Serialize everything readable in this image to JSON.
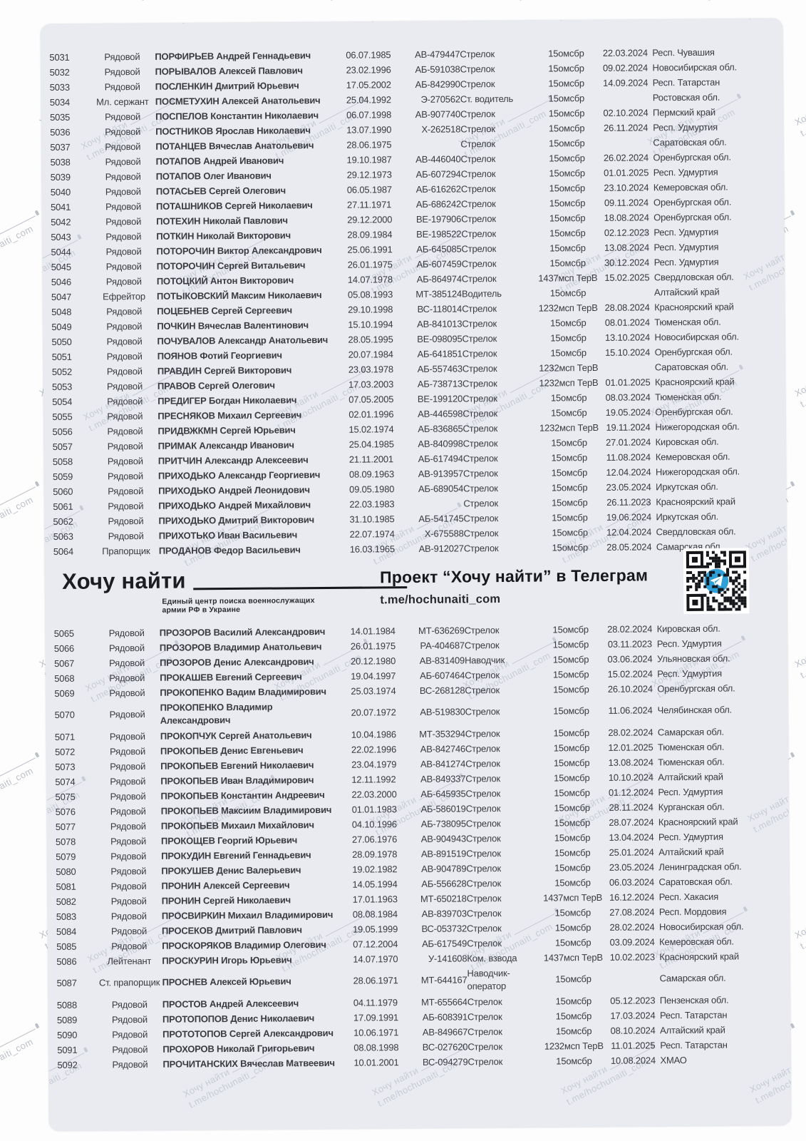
{
  "banner": {
    "logo_text": "Хочу найти",
    "logo_subtitle_line1": "Единый центр поиска военнослужащих",
    "logo_subtitle_line2": "армии РФ в Украине",
    "project_title": "Проект “Хочу найти” в Телеграм",
    "project_link": "t.me/hochunaiti_com",
    "qr_icon": "telegram-qr"
  },
  "watermark": {
    "line1": "Хочу найти",
    "line2": "t.me/hochunaiti_com"
  },
  "colors": {
    "page_bg": "#fdfdfd",
    "card_bg": "#e9ebf1",
    "text": "#3a3b40",
    "name_text": "#1f2024",
    "watermark": "#7a8294",
    "telegram_blue": "#2f9fd8",
    "qr_black": "#15161a"
  },
  "table": {
    "section1": [
      {
        "id": "5031",
        "rank": "Рядовой",
        "name": "ПОРФИРЬЕВ Андрей Геннадьевич",
        "dob": "06.07.1985",
        "doc": "АВ-479447",
        "position": "Стрелок",
        "unit": "15омсбр",
        "date": "22.03.2024",
        "region": "Респ. Чувашия"
      },
      {
        "id": "5032",
        "rank": "Рядовой",
        "name": "ПОРЫВАЛОВ Алексей Павлович",
        "dob": "23.02.1996",
        "doc": "АБ-591038",
        "position": "Стрелок",
        "unit": "15омсбр",
        "date": "09.02.2024",
        "region": "Новосибирская обл."
      },
      {
        "id": "5033",
        "rank": "Рядовой",
        "name": "ПОСЛЕНКИН Дмитрий Юрьевич",
        "dob": "17.05.2002",
        "doc": "АБ-842990",
        "position": "Стрелок",
        "unit": "15омсбр",
        "date": "14.09.2024",
        "region": "Респ. Татарстан"
      },
      {
        "id": "5034",
        "rank": "Мл. сержант",
        "name": "ПОСМЕТУХИН Алексей Анатольевич",
        "dob": "25.04.1992",
        "doc": "Э-270562",
        "position": "Ст. водитель",
        "unit": "15омсбр",
        "date": "",
        "region": "Ростовская обл."
      },
      {
        "id": "5035",
        "rank": "Рядовой",
        "name": "ПОСПЕЛОВ Константин Николаевич",
        "dob": "06.07.1998",
        "doc": "АВ-907740",
        "position": "Стрелок",
        "unit": "15омсбр",
        "date": "02.10.2024",
        "region": "Пермский край"
      },
      {
        "id": "5036",
        "rank": "Рядовой",
        "name": "ПОСТНИКОВ Ярослав Николаевич",
        "dob": "13.07.1990",
        "doc": "Х-262518",
        "position": "Стрелок",
        "unit": "15омсбр",
        "date": "26.11.2024",
        "region": "Респ. Удмуртия"
      },
      {
        "id": "5037",
        "rank": "Рядовой",
        "name": "ПОТАНЦЕВ Вячеслав Анатольевич",
        "dob": "28.06.1975",
        "doc": "",
        "position": "Стрелок",
        "unit": "15омсбр",
        "date": "",
        "region": "Саратовская обл."
      },
      {
        "id": "5038",
        "rank": "Рядовой",
        "name": "ПОТАПОВ Андрей Иванович",
        "dob": "19.10.1987",
        "doc": "АВ-446040",
        "position": "Стрелок",
        "unit": "15омсбр",
        "date": "26.02.2024",
        "region": "Оренбургская обл."
      },
      {
        "id": "5039",
        "rank": "Рядовой",
        "name": "ПОТАПОВ Олег Иванович",
        "dob": "29.12.1973",
        "doc": "АБ-607294",
        "position": "Стрелок",
        "unit": "15омсбр",
        "date": "01.01.2025",
        "region": "Респ. Удмуртия"
      },
      {
        "id": "5040",
        "rank": "Рядовой",
        "name": "ПОТАСЬЕВ Сергей Олегович",
        "dob": "06.05.1987",
        "doc": "АБ-616262",
        "position": "Стрелок",
        "unit": "15омсбр",
        "date": "23.10.2024",
        "region": "Кемеровская обл."
      },
      {
        "id": "5041",
        "rank": "Рядовой",
        "name": "ПОТАШНИКОВ Сергей Николаевич",
        "dob": "27.11.1971",
        "doc": "АБ-686242",
        "position": "Стрелок",
        "unit": "15омсбр",
        "date": "09.11.2024",
        "region": "Оренбургская обл."
      },
      {
        "id": "5042",
        "rank": "Рядовой",
        "name": "ПОТЕХИН Николай Павлович",
        "dob": "29.12.2000",
        "doc": "ВЕ-197906",
        "position": "Стрелок",
        "unit": "15омсбр",
        "date": "18.08.2024",
        "region": "Оренбургская обл."
      },
      {
        "id": "5043",
        "rank": "Рядовой",
        "name": "ПОТКИН Николай Викторович",
        "dob": "28.09.1984",
        "doc": "ВЕ-198522",
        "position": "Стрелок",
        "unit": "15омсбр",
        "date": "02.12.2023",
        "region": "Респ. Удмуртия"
      },
      {
        "id": "5044",
        "rank": "Рядовой",
        "name": "ПОТОРОЧИН Виктор Александрович",
        "dob": "25.06.1991",
        "doc": "АБ-645085",
        "position": "Стрелок",
        "unit": "15омсбр",
        "date": "13.08.2024",
        "region": "Респ. Удмуртия"
      },
      {
        "id": "5045",
        "rank": "Рядовой",
        "name": "ПОТОРОЧИН Сергей Витальевич",
        "dob": "26.01.1975",
        "doc": "АБ-607459",
        "position": "Стрелок",
        "unit": "15омсбр",
        "date": "30.12.2024",
        "region": "Респ. Удмуртия"
      },
      {
        "id": "5046",
        "rank": "Рядовой",
        "name": "ПОТОЦКИЙ Антон Викторович",
        "dob": "14.07.1978",
        "doc": "АБ-864974",
        "position": "Стрелок",
        "unit": "1437мсп ТерВ",
        "date": "15.02.2025",
        "region": "Свердловская обл."
      },
      {
        "id": "5047",
        "rank": "Ефрейтор",
        "name": "ПОТЫКОВСКИЙ Максим Николаевич",
        "dob": "05.08.1993",
        "doc": "МТ-385124",
        "position": "Водитель",
        "unit": "15омсбр",
        "date": "",
        "region": "Алтайский край"
      },
      {
        "id": "5048",
        "rank": "Рядовой",
        "name": "ПОЦЕБНЕВ Сергей Сергеевич",
        "dob": "29.10.1998",
        "doc": "ВС-118014",
        "position": "Стрелок",
        "unit": "1232мсп ТерВ",
        "date": "28.08.2024",
        "region": "Красноярский край"
      },
      {
        "id": "5049",
        "rank": "Рядовой",
        "name": "ПОЧКИН Вячеслав Валентинович",
        "dob": "15.10.1994",
        "doc": "АВ-841013",
        "position": "Стрелок",
        "unit": "15омсбр",
        "date": "08.01.2024",
        "region": "Тюменская обл."
      },
      {
        "id": "5050",
        "rank": "Рядовой",
        "name": "ПОЧУВАЛОВ Александр Анатольевич",
        "dob": "28.05.1995",
        "doc": "ВЕ-098095",
        "position": "Стрелок",
        "unit": "15омсбр",
        "date": "13.10.2024",
        "region": "Новосибирская обл."
      },
      {
        "id": "5051",
        "rank": "Рядовой",
        "name": "ПОЯНОВ Фотий Георгиевич",
        "dob": "20.07.1984",
        "doc": "АБ-641851",
        "position": "Стрелок",
        "unit": "15омсбр",
        "date": "15.10.2024",
        "region": "Оренбургская обл."
      },
      {
        "id": "5052",
        "rank": "Рядовой",
        "name": "ПРАВДИН Сергей Викторович",
        "dob": "23.03.1978",
        "doc": "АБ-557463",
        "position": "Стрелок",
        "unit": "1232мсп ТерВ",
        "date": "",
        "region": "Саратовская обл."
      },
      {
        "id": "5053",
        "rank": "Рядовой",
        "name": "ПРАВОВ Сергей Олегович",
        "dob": "17.03.2003",
        "doc": "АБ-738713",
        "position": "Стрелок",
        "unit": "1232мсп ТерВ",
        "date": "01.01.2025",
        "region": "Красноярский край"
      },
      {
        "id": "5054",
        "rank": "Рядовой",
        "name": "ПРЕДИГЕР Богдан Николаевич",
        "dob": "07.05.2005",
        "doc": "ВЕ-199120",
        "position": "Стрелок",
        "unit": "15омсбр",
        "date": "08.03.2024",
        "region": "Тюменская обл."
      },
      {
        "id": "5055",
        "rank": "Рядовой",
        "name": "ПРЕСНЯКОВ Михаил Сергеевич",
        "dob": "02.01.1996",
        "doc": "АВ-446598",
        "position": "Стрелок",
        "unit": "15омсбр",
        "date": "19.05.2024",
        "region": "Оренбургская обл."
      },
      {
        "id": "5056",
        "rank": "Рядовой",
        "name": "ПРИДВЖКМН Сергей Юрьевич",
        "dob": "15.02.1974",
        "doc": "АБ-836865",
        "position": "Стрелок",
        "unit": "1232мсп ТерВ",
        "date": "19.11.2024",
        "region": "Нижегородская обл."
      },
      {
        "id": "5057",
        "rank": "Рядовой",
        "name": "ПРИМАК Александр Иванович",
        "dob": "25.04.1985",
        "doc": "АВ-840998",
        "position": "Стрелок",
        "unit": "15омсбр",
        "date": "27.01.2024",
        "region": "Кировская обл."
      },
      {
        "id": "5058",
        "rank": "Рядовой",
        "name": "ПРИТЧИН Александр Алексеевич",
        "dob": "21.11.2001",
        "doc": "АБ-617494",
        "position": "Стрелок",
        "unit": "15омсбр",
        "date": "11.08.2024",
        "region": "Кемеровская обл."
      },
      {
        "id": "5059",
        "rank": "Рядовой",
        "name": "ПРИХОДЬКО Александр Георгиевич",
        "dob": "08.09.1963",
        "doc": "АВ-913957",
        "position": "Стрелок",
        "unit": "15омсбр",
        "date": "12.04.2024",
        "region": "Нижегородская обл."
      },
      {
        "id": "5060",
        "rank": "Рядовой",
        "name": "ПРИХОДЬКО Андрей Леонидович",
        "dob": "09.05.1980",
        "doc": "АБ-689054",
        "position": "Стрелок",
        "unit": "15омсбр",
        "date": "23.05.2024",
        "region": "Иркутская обл."
      },
      {
        "id": "5061",
        "rank": "Рядовой",
        "name": "ПРИХОДЬКО Андрей Михайлович",
        "dob": "22.03.1983",
        "doc": "",
        "position": "Стрелок",
        "unit": "15омсбр",
        "date": "26.11.2023",
        "region": "Красноярский край"
      },
      {
        "id": "5062",
        "rank": "Рядовой",
        "name": "ПРИХОДЬКО Дмитрий Викторович",
        "dob": "31.10.1985",
        "doc": "АБ-541745",
        "position": "Стрелок",
        "unit": "15омсбр",
        "date": "19.06.2024",
        "region": "Иркутская обл."
      },
      {
        "id": "5063",
        "rank": "Рядовой",
        "name": "ПРИХОТЬКО Иван Васильевич",
        "dob": "22.07.1974",
        "doc": "Х-675588",
        "position": "Стрелок",
        "unit": "15омсбр",
        "date": "12.04.2024",
        "region": "Свердловская обл."
      },
      {
        "id": "5064",
        "rank": "Прапорщик",
        "name": "ПРОДАНОВ Федор Васильевич",
        "dob": "16.03.1965",
        "doc": "АВ-912027",
        "position": "Стрелок",
        "unit": "15омсбр",
        "date": "28.05.2024",
        "region": "Самарская обл."
      }
    ],
    "section2": [
      {
        "id": "5065",
        "rank": "Рядовой",
        "name": "ПРОЗОРОВ Василий Александрович",
        "dob": "14.01.1984",
        "doc": "МТ-636269",
        "position": "Стрелок",
        "unit": "15омсбр",
        "date": "28.02.2024",
        "region": "Кировская обл."
      },
      {
        "id": "5066",
        "rank": "Рядовой",
        "name": "ПРОЗОРОВ Владимир Анатольевич",
        "dob": "26.01.1975",
        "doc": "РА-404687",
        "position": "Стрелок",
        "unit": "15омсбр",
        "date": "03.11.2023",
        "region": "Респ. Удмуртия"
      },
      {
        "id": "5067",
        "rank": "Рядовой",
        "name": "ПРОЗОРОВ Денис Александрович",
        "dob": "20.12.1980",
        "doc": "АВ-831409",
        "position": "Наводчик",
        "unit": "15омсбр",
        "date": "03.06.2024",
        "region": "Ульяновская обл."
      },
      {
        "id": "5068",
        "rank": "Рядовой",
        "name": "ПРОКАШЕВ Евгений Сергеевич",
        "dob": "19.04.1997",
        "doc": "АБ-607464",
        "position": "Стрелок",
        "unit": "15омсбр",
        "date": "15.02.2024",
        "region": "Респ. Удмуртия"
      },
      {
        "id": "5069",
        "rank": "Рядовой",
        "name": "ПРОКОПЕНКО Вадим Владимирович",
        "dob": "25.03.1974",
        "doc": "ВС-268128",
        "position": "Стрелок",
        "unit": "15омсбр",
        "date": "26.10.2024",
        "region": "Оренбургская обл."
      },
      {
        "id": "5070",
        "rank": "Рядовой",
        "name": "ПРОКОПЕНКО Владимир\nАлександрович",
        "dob": "20.07.1972",
        "doc": "АВ-519830",
        "position": "Стрелок",
        "unit": "15омсбр",
        "date": "11.06.2024",
        "region": "Челябинская обл.",
        "multi": true
      },
      {
        "id": "5071",
        "rank": "Рядовой",
        "name": "ПРОКОПЧУК Сергей Анатольевич",
        "dob": "10.04.1986",
        "doc": "МТ-353294",
        "position": "Стрелок",
        "unit": "15омсбр",
        "date": "28.02.2024",
        "region": "Самарская обл."
      },
      {
        "id": "5072",
        "rank": "Рядовой",
        "name": "ПРОКОПЬЕВ Денис Евгеньевич",
        "dob": "22.02.1996",
        "doc": "АВ-842746",
        "position": "Стрелок",
        "unit": "15омсбр",
        "date": "12.01.2025",
        "region": "Тюменская обл."
      },
      {
        "id": "5073",
        "rank": "Рядовой",
        "name": "ПРОКОПЬЕВ Евгений Николаевич",
        "dob": "23.04.1979",
        "doc": "АВ-841274",
        "position": "Стрелок",
        "unit": "15омсбр",
        "date": "13.08.2024",
        "region": "Тюменская обл."
      },
      {
        "id": "5074",
        "rank": "Рядовой",
        "name": "ПРОКОПЬЕВ Иван Владимирович",
        "dob": "12.11.1992",
        "doc": "АВ-849337",
        "position": "Стрелок",
        "unit": "15омсбр",
        "date": "10.10.2024",
        "region": "Алтайский край"
      },
      {
        "id": "5075",
        "rank": "Рядовой",
        "name": "ПРОКОПЬЕВ Константин Андреевич",
        "dob": "22.03.2000",
        "doc": "АБ-645935",
        "position": "Стрелок",
        "unit": "15омсбр",
        "date": "01.12.2024",
        "region": "Респ. Удмуртия"
      },
      {
        "id": "5076",
        "rank": "Рядовой",
        "name": "ПРОКОПЬЕВ Максиим Владимирович",
        "dob": "01.01.1983",
        "doc": "АБ-586019",
        "position": "Стрелок",
        "unit": "15омсбр",
        "date": "28.11.2024",
        "region": "Курганская обл."
      },
      {
        "id": "5077",
        "rank": "Рядовой",
        "name": "ПРОКОПЬЕВ Михаил Михайлович",
        "dob": "04.10.1996",
        "doc": "АБ-738095",
        "position": "Стрелок",
        "unit": "15омсбр",
        "date": "28.07.2024",
        "region": "Красноярский край"
      },
      {
        "id": "5078",
        "rank": "Рядовой",
        "name": "ПРОКОЩЕВ Георгий Юрьевич",
        "dob": "27.06.1976",
        "doc": "АВ-904943",
        "position": "Стрелок",
        "unit": "15омсбр",
        "date": "13.04.2024",
        "region": "Респ. Удмуртия"
      },
      {
        "id": "5079",
        "rank": "Рядовой",
        "name": "ПРОКУДИН Евгений Геннадьевич",
        "dob": "28.09.1978",
        "doc": "АВ-891519",
        "position": "Стрелок",
        "unit": "15омсбр",
        "date": "25.01.2024",
        "region": "Алтайский край"
      },
      {
        "id": "5080",
        "rank": "Рядовой",
        "name": "ПРОКУШЕВ Денис Валерьевич",
        "dob": "19.02.1982",
        "doc": "АВ-904789",
        "position": "Стрелок",
        "unit": "15омсбр",
        "date": "23.05.2024",
        "region": "Ленинградская обл."
      },
      {
        "id": "5081",
        "rank": "Рядовой",
        "name": "ПРОНИН Алексей Сергеевич",
        "dob": "14.05.1994",
        "doc": "АБ-556628",
        "position": "Стрелок",
        "unit": "15омсбр",
        "date": "06.03.2024",
        "region": "Саратовская обл."
      },
      {
        "id": "5082",
        "rank": "Рядовой",
        "name": "ПРОНИН Сергей Николаевич",
        "dob": "17.01.1963",
        "doc": "МТ-650218",
        "position": "Стрелок",
        "unit": "1437мсп ТерВ",
        "date": "16.12.2024",
        "region": "Респ. Хакасия"
      },
      {
        "id": "5083",
        "rank": "Рядовой",
        "name": "ПРОСВИРКИН Михаил Владимирович",
        "dob": "08.08.1984",
        "doc": "АВ-839703",
        "position": "Стрелок",
        "unit": "15омсбр",
        "date": "27.08.2024",
        "region": "Респ. Мордовия"
      },
      {
        "id": "5084",
        "rank": "Рядовой",
        "name": "ПРОСЕКОВ Дмитрий Павлович",
        "dob": "19.05.1999",
        "doc": "ВС-053732",
        "position": "Стрелок",
        "unit": "15омсбр",
        "date": "28.02.2024",
        "region": "Новосибирская обл."
      },
      {
        "id": "5085",
        "rank": "Рядовой",
        "name": "ПРОСКОРЯКОВ Владимир Олегович",
        "dob": "07.12.2004",
        "doc": "АБ-617549",
        "position": "Стрелок",
        "unit": "15омсбр",
        "date": "03.09.2024",
        "region": "Кемеровская обл."
      },
      {
        "id": "5086",
        "rank": "Лейтенант",
        "name": "ПРОСКУРИН Игорь Юрьевич",
        "dob": "14.07.1970",
        "doc": "У-141608",
        "position": "Ком. взвода",
        "unit": "1437мсп ТерВ",
        "date": "10.02.2023",
        "region": "Красноярский край"
      },
      {
        "id": "5087",
        "rank": "Ст. прапорщик",
        "name": "ПРОСНЕВ Алексей Юрьевич",
        "dob": "28.06.1971",
        "doc": "МТ-644167",
        "position": "Наводчик-\nоператор",
        "unit": "15омсбр",
        "date": "",
        "region": "Самарская обл.",
        "multi": true
      },
      {
        "id": "5088",
        "rank": "Рядовой",
        "name": "ПРОСТОВ Андрей Алексеевич",
        "dob": "04.11.1979",
        "doc": "МТ-655664",
        "position": "Стрелок",
        "unit": "15омсбр",
        "date": "05.12.2023",
        "region": "Пензенская обл."
      },
      {
        "id": "5089",
        "rank": "Рядовой",
        "name": "ПРОТОПОПОВ Денис Николаевич",
        "dob": "17.09.1991",
        "doc": "АБ-608391",
        "position": "Стрелок",
        "unit": "15омсбр",
        "date": "17.03.2024",
        "region": "Респ. Татарстан"
      },
      {
        "id": "5090",
        "rank": "Рядовой",
        "name": "ПРОТОТОПОВ Сергей Александрович",
        "dob": "10.06.1971",
        "doc": "АВ-849667",
        "position": "Стрелок",
        "unit": "15омсбр",
        "date": "08.10.2024",
        "region": "Алтайский край"
      },
      {
        "id": "5091",
        "rank": "Рядовой",
        "name": "ПРОХОРОВ Николай Григорьевич",
        "dob": "08.08.1998",
        "doc": "ВС-027620",
        "position": "Стрелок",
        "unit": "1232мсп ТерВ",
        "date": "11.01.2025",
        "region": "Респ. Татарстан"
      },
      {
        "id": "5092",
        "rank": "Рядовой",
        "name": "ПРОЧИТАНСКИХ Вячеслав Матвеевич",
        "dob": "10.01.2001",
        "doc": "ВС-094279",
        "position": "Стрелок",
        "unit": "15омсбр",
        "date": "10.08.2024",
        "region": "ХМАО"
      }
    ]
  }
}
